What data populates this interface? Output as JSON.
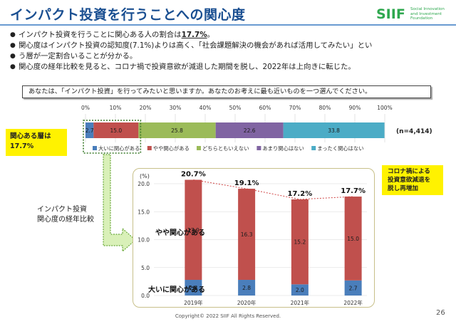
{
  "header": {
    "title": "インパクト投資を行うことへの関心度",
    "logo_word": "SIIF",
    "logo_sub": "Social Innovation\nand Investment\nFoundation"
  },
  "bullets": [
    {
      "pre": "インパクト投資を行うことに関心ある人の割合は",
      "hl": "17.7%",
      "post": "。"
    },
    {
      "pre": "関心度はインパクト投資の認知度(7.1%)よりは高く、「社会課題解決の機会があれば活用してみたい」とい",
      "hl": "",
      "post": ""
    },
    {
      "pre": "う層が一定割合いることが分かる。",
      "hl": "",
      "post": ""
    },
    {
      "pre": "関心度の経年比較を見ると、コロナ禍で投資意欲が減退した期間を脱し、2022年は上向きに転じた。",
      "hl": "",
      "post": ""
    }
  ],
  "question": "あなたは、「インパクト投資」を行ってみたいと思いますか。あなたのお考えに最も近いものを一つ選んでください。",
  "callout_left": "関心ある層は\n17.7%",
  "callout_right": "コロナ禍による\n投資意欲減退を\n脱し再増加",
  "side_label": "インパクト投資\n関心度の経年比較",
  "footer": {
    "copyright": "Copyright© 2022 SIIF All Rights Reserved.",
    "page": "26"
  },
  "chart_data": [
    {
      "type": "bar",
      "orientation": "horizontal-stacked",
      "x_ticks": [
        "0%",
        "10%",
        "20%",
        "30%",
        "40%",
        "50%",
        "60%",
        "70%",
        "80%",
        "90%",
        "100%"
      ],
      "xlim": [
        0,
        100
      ],
      "n_label": "(n=4,414)",
      "series": [
        {
          "name": "大いに関心がある",
          "value": 2.7,
          "color": "#4a7ebb"
        },
        {
          "name": "やや関心がある",
          "value": 15.0,
          "color": "#c0504d"
        },
        {
          "name": "どちらともいえない",
          "value": 25.8,
          "color": "#9bbb59"
        },
        {
          "name": "あまり関心はない",
          "value": 22.6,
          "color": "#8064a2"
        },
        {
          "name": "まったく関心はない",
          "value": 33.8,
          "color": "#4bacc6"
        }
      ],
      "legend": "bottom"
    },
    {
      "type": "bar",
      "orientation": "vertical-stacked",
      "ylabel": "(%)",
      "ylim": [
        0,
        20.0
      ],
      "y_ticks": [
        "0.0",
        "5.0",
        "10.0",
        "15.0",
        "20.0"
      ],
      "categories": [
        "2019年",
        "2020年",
        "2021年",
        "2022年"
      ],
      "series": [
        {
          "name": "大いに関心がある",
          "values": [
            2.8,
            2.8,
            2.0,
            2.7
          ],
          "color": "#4a7ebb"
        },
        {
          "name": "やや関心がある",
          "values": [
            17.9,
            16.3,
            15.2,
            15.0
          ],
          "color": "#c0504d"
        }
      ],
      "totals": [
        "20.7%",
        "19.1%",
        "17.2%",
        "17.7%"
      ],
      "total_values": [
        20.7,
        19.1,
        17.2,
        17.7
      ]
    }
  ]
}
